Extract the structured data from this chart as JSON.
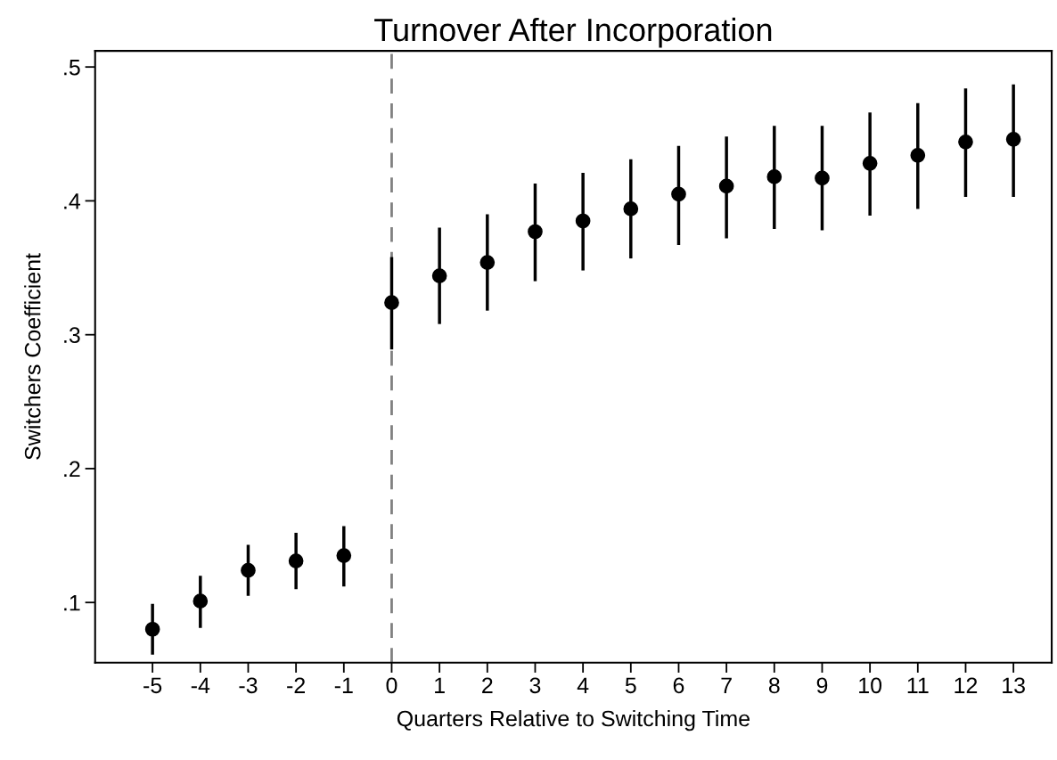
{
  "chart_data": {
    "type": "scatter",
    "title": "Turnover After Incorporation",
    "xlabel": "Quarters Relative to Switching Time",
    "ylabel": "Switchers Coefficient",
    "x": [
      -5,
      -4,
      -3,
      -2,
      -1,
      0,
      1,
      2,
      3,
      4,
      5,
      6,
      7,
      8,
      9,
      10,
      11,
      12,
      13
    ],
    "series": [
      {
        "color": "#000000",
        "values": [
          0.08,
          0.101,
          0.124,
          0.131,
          0.135,
          0.324,
          0.344,
          0.354,
          0.377,
          0.385,
          0.394,
          0.405,
          0.411,
          0.418,
          0.417,
          0.428,
          0.434,
          0.444,
          0.446
        ],
        "errors": [
          [
            0.061,
            0.099
          ],
          [
            0.081,
            0.12
          ],
          [
            0.105,
            0.143
          ],
          [
            0.11,
            0.152
          ],
          [
            0.112,
            0.157
          ],
          [
            0.289,
            0.358
          ],
          [
            0.308,
            0.38
          ],
          [
            0.318,
            0.39
          ],
          [
            0.34,
            0.413
          ],
          [
            0.348,
            0.421
          ],
          [
            0.357,
            0.431
          ],
          [
            0.367,
            0.441
          ],
          [
            0.372,
            0.448
          ],
          [
            0.379,
            0.456
          ],
          [
            0.378,
            0.456
          ],
          [
            0.389,
            0.466
          ],
          [
            0.394,
            0.473
          ],
          [
            0.403,
            0.484
          ],
          [
            0.403,
            0.487
          ]
        ]
      }
    ],
    "xlim": [
      -6.2,
      13.8
    ],
    "ylim": [
      0.055,
      0.512
    ],
    "xticks": [
      -5,
      -4,
      -3,
      -2,
      -1,
      0,
      1,
      2,
      3,
      4,
      5,
      6,
      7,
      8,
      9,
      10,
      11,
      12,
      13
    ],
    "yticks": [
      {
        "value": 0.1,
        "label": ".1"
      },
      {
        "value": 0.2,
        "label": ".2"
      },
      {
        "value": 0.3,
        "label": ".3"
      },
      {
        "value": 0.4,
        "label": ".4"
      },
      {
        "value": 0.5,
        "label": ".5"
      }
    ],
    "ref_lines": [
      {
        "axis": "x",
        "value": 0,
        "color": "#808080",
        "line_style": "dashed"
      }
    ],
    "marker": "circle",
    "grid": false,
    "legend": false
  }
}
